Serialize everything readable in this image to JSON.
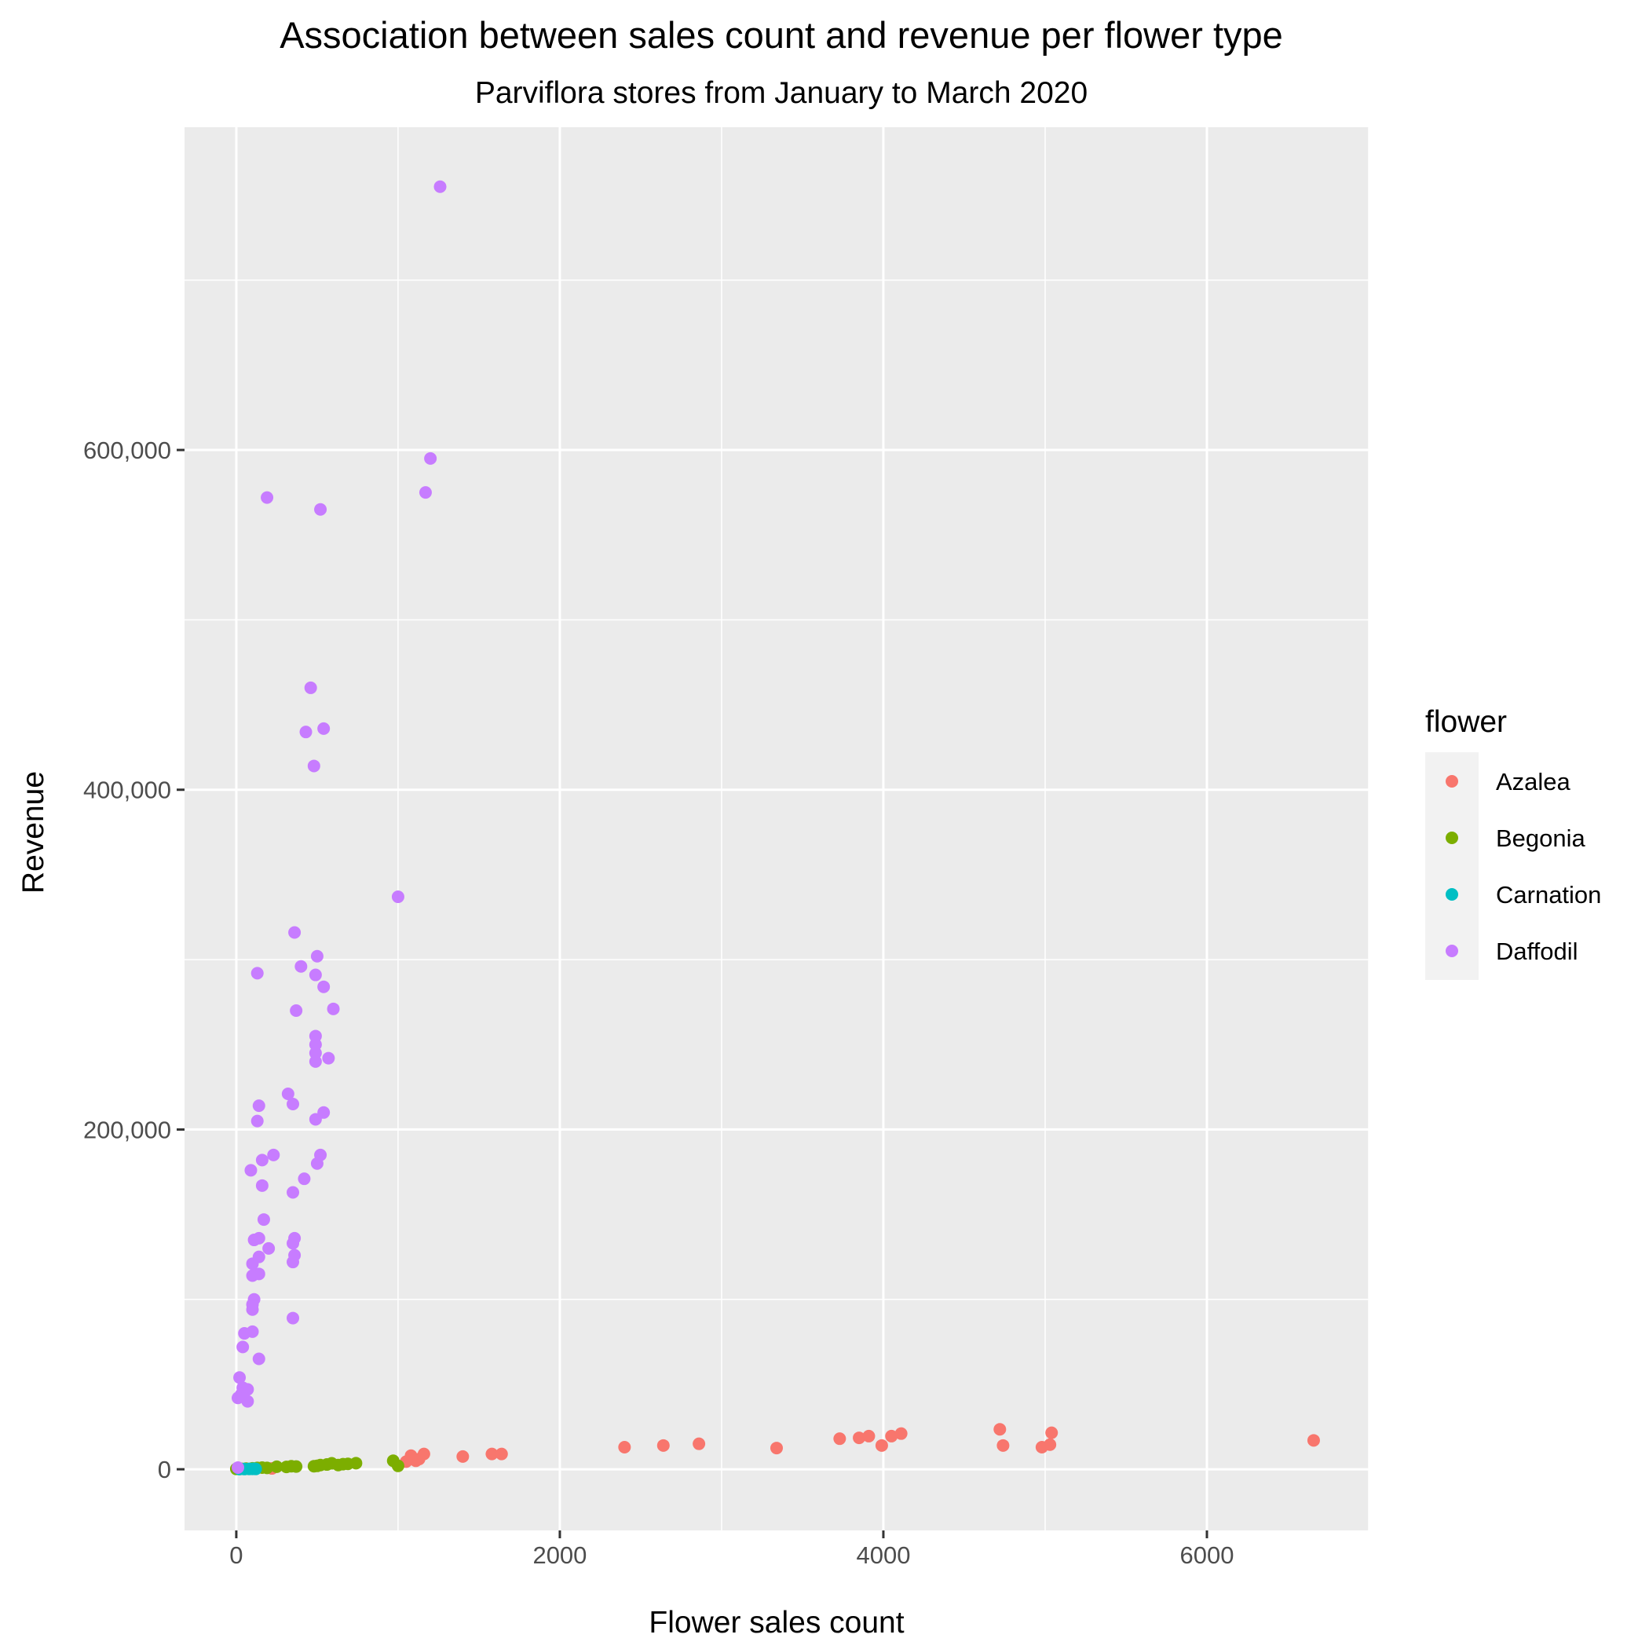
{
  "chart_data": {
    "type": "scatter",
    "title": "Association between sales count and revenue per flower type",
    "subtitle": "Parviflora stores from January to March 2020",
    "xlabel": "Flower sales count",
    "ylabel": "Revenue",
    "xlim": [
      -320,
      7000
    ],
    "ylim": [
      -36000,
      790000
    ],
    "x_ticks": [
      0,
      2000,
      4000,
      6000
    ],
    "x_tick_labels": [
      "0",
      "2000",
      "4000",
      "6000"
    ],
    "y_ticks": [
      0,
      200000,
      400000,
      600000
    ],
    "y_tick_labels": [
      "0",
      "200,000",
      "400,000",
      "600,000"
    ],
    "grid": true,
    "legend": {
      "title": "flower",
      "placement": "right"
    },
    "series": [
      {
        "name": "Azalea",
        "color": "#F8766D",
        "points": [
          [
            220,
            500
          ],
          [
            1050,
            4500
          ],
          [
            1080,
            8000
          ],
          [
            1110,
            5000
          ],
          [
            1130,
            6000
          ],
          [
            1160,
            9000
          ],
          [
            1400,
            7500
          ],
          [
            1580,
            9000
          ],
          [
            1640,
            9000
          ],
          [
            2400,
            13000
          ],
          [
            2640,
            14000
          ],
          [
            2860,
            15000
          ],
          [
            3340,
            12500
          ],
          [
            3730,
            18000
          ],
          [
            3850,
            18500
          ],
          [
            3910,
            19500
          ],
          [
            3990,
            14000
          ],
          [
            4050,
            19500
          ],
          [
            4110,
            21000
          ],
          [
            4720,
            23500
          ],
          [
            4740,
            14000
          ],
          [
            4980,
            13000
          ],
          [
            5030,
            14500
          ],
          [
            5040,
            21500
          ],
          [
            6660,
            17000
          ]
        ]
      },
      {
        "name": "Begonia",
        "color": "#7CAE00",
        "points": [
          [
            0,
            200
          ],
          [
            30,
            300
          ],
          [
            60,
            400
          ],
          [
            100,
            600
          ],
          [
            130,
            800
          ],
          [
            160,
            1000
          ],
          [
            190,
            800
          ],
          [
            250,
            1500
          ],
          [
            310,
            1400
          ],
          [
            340,
            1800
          ],
          [
            370,
            1600
          ],
          [
            480,
            1800
          ],
          [
            500,
            2000
          ],
          [
            520,
            2500
          ],
          [
            560,
            2800
          ],
          [
            590,
            3500
          ],
          [
            630,
            2500
          ],
          [
            660,
            3000
          ],
          [
            690,
            3200
          ],
          [
            740,
            3600
          ],
          [
            970,
            5000
          ],
          [
            1000,
            2000
          ]
        ]
      },
      {
        "name": "Carnation",
        "color": "#00BFC4",
        "points": [
          [
            20,
            100
          ],
          [
            50,
            150
          ],
          [
            80,
            200
          ],
          [
            100,
            250
          ],
          [
            110,
            300
          ],
          [
            120,
            200
          ]
        ]
      },
      {
        "name": "Daffodil",
        "color": "#C77CFF",
        "points": [
          [
            1260,
            755000
          ],
          [
            1200,
            595000
          ],
          [
            1170,
            575000
          ],
          [
            190,
            572000
          ],
          [
            520,
            565000
          ],
          [
            460,
            460000
          ],
          [
            430,
            434000
          ],
          [
            540,
            436000
          ],
          [
            480,
            414000
          ],
          [
            1000,
            337000
          ],
          [
            360,
            316000
          ],
          [
            500,
            302000
          ],
          [
            400,
            296000
          ],
          [
            130,
            292000
          ],
          [
            490,
            291000
          ],
          [
            540,
            284000
          ],
          [
            600,
            271000
          ],
          [
            370,
            270000
          ],
          [
            490,
            255000
          ],
          [
            490,
            250000
          ],
          [
            490,
            245000
          ],
          [
            570,
            242000
          ],
          [
            490,
            240000
          ],
          [
            320,
            221000
          ],
          [
            350,
            215000
          ],
          [
            140,
            214000
          ],
          [
            540,
            210000
          ],
          [
            490,
            206000
          ],
          [
            130,
            205000
          ],
          [
            230,
            185000
          ],
          [
            520,
            185000
          ],
          [
            160,
            182000
          ],
          [
            500,
            180000
          ],
          [
            90,
            176000
          ],
          [
            420,
            171000
          ],
          [
            160,
            167000
          ],
          [
            350,
            163000
          ],
          [
            170,
            147000
          ],
          [
            140,
            136000
          ],
          [
            360,
            136000
          ],
          [
            110,
            135000
          ],
          [
            350,
            133000
          ],
          [
            200,
            130000
          ],
          [
            360,
            126000
          ],
          [
            140,
            125000
          ],
          [
            350,
            122000
          ],
          [
            100,
            121000
          ],
          [
            140,
            115000
          ],
          [
            100,
            114000
          ],
          [
            110,
            100000
          ],
          [
            100,
            97000
          ],
          [
            100,
            94000
          ],
          [
            350,
            89000
          ],
          [
            100,
            81000
          ],
          [
            50,
            80000
          ],
          [
            40,
            72000
          ],
          [
            140,
            65000
          ],
          [
            20,
            54000
          ],
          [
            40,
            48000
          ],
          [
            70,
            47000
          ],
          [
            30,
            44000
          ],
          [
            10,
            42000
          ],
          [
            70,
            40000
          ],
          [
            10,
            1000
          ]
        ]
      }
    ]
  }
}
